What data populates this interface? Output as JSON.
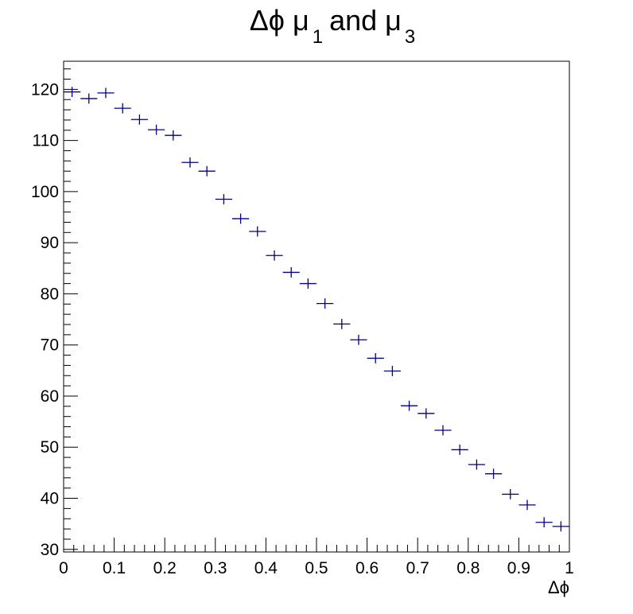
{
  "chart_data": {
    "type": "scatter",
    "title": {
      "delta_phi": "Δϕ",
      "mu_a": "μ",
      "sub_a": "1",
      "and": "and",
      "mu_b": "μ",
      "sub_b": "3"
    },
    "xlabel": "Δϕ",
    "ylabel": "",
    "xlim": [
      0,
      1
    ],
    "ylim": [
      29.5,
      125.5
    ],
    "x_ticks": [
      "0",
      "0.1",
      "0.2",
      "0.3",
      "0.4",
      "0.5",
      "0.6",
      "0.7",
      "0.8",
      "0.9",
      "1"
    ],
    "y_ticks": [
      "30",
      "40",
      "50",
      "60",
      "70",
      "80",
      "90",
      "100",
      "110",
      "120"
    ],
    "marker_color": "#000080",
    "bin_width": 0.0333,
    "series": [
      {
        "x": [
          0.0167,
          0.05,
          0.0833,
          0.1167,
          0.15,
          0.1833,
          0.2167,
          0.25,
          0.2833,
          0.3167,
          0.35,
          0.3833,
          0.4167,
          0.45,
          0.4833,
          0.5167,
          0.55,
          0.5833,
          0.6167,
          0.65,
          0.6833,
          0.7167,
          0.75,
          0.7833,
          0.8167,
          0.85,
          0.8833,
          0.9167,
          0.95,
          0.9833
        ],
        "y": [
          119.5,
          118.2,
          119.3,
          116.3,
          114.1,
          112.1,
          111.0,
          105.7,
          104.0,
          98.5,
          94.7,
          92.2,
          87.5,
          84.2,
          82.0,
          78.1,
          74.1,
          71.0,
          67.4,
          64.9,
          58.1,
          56.6,
          53.3,
          49.5,
          46.6,
          44.8,
          40.8,
          38.7,
          35.3,
          34.5
        ],
        "y_err": 1.0
      }
    ]
  }
}
